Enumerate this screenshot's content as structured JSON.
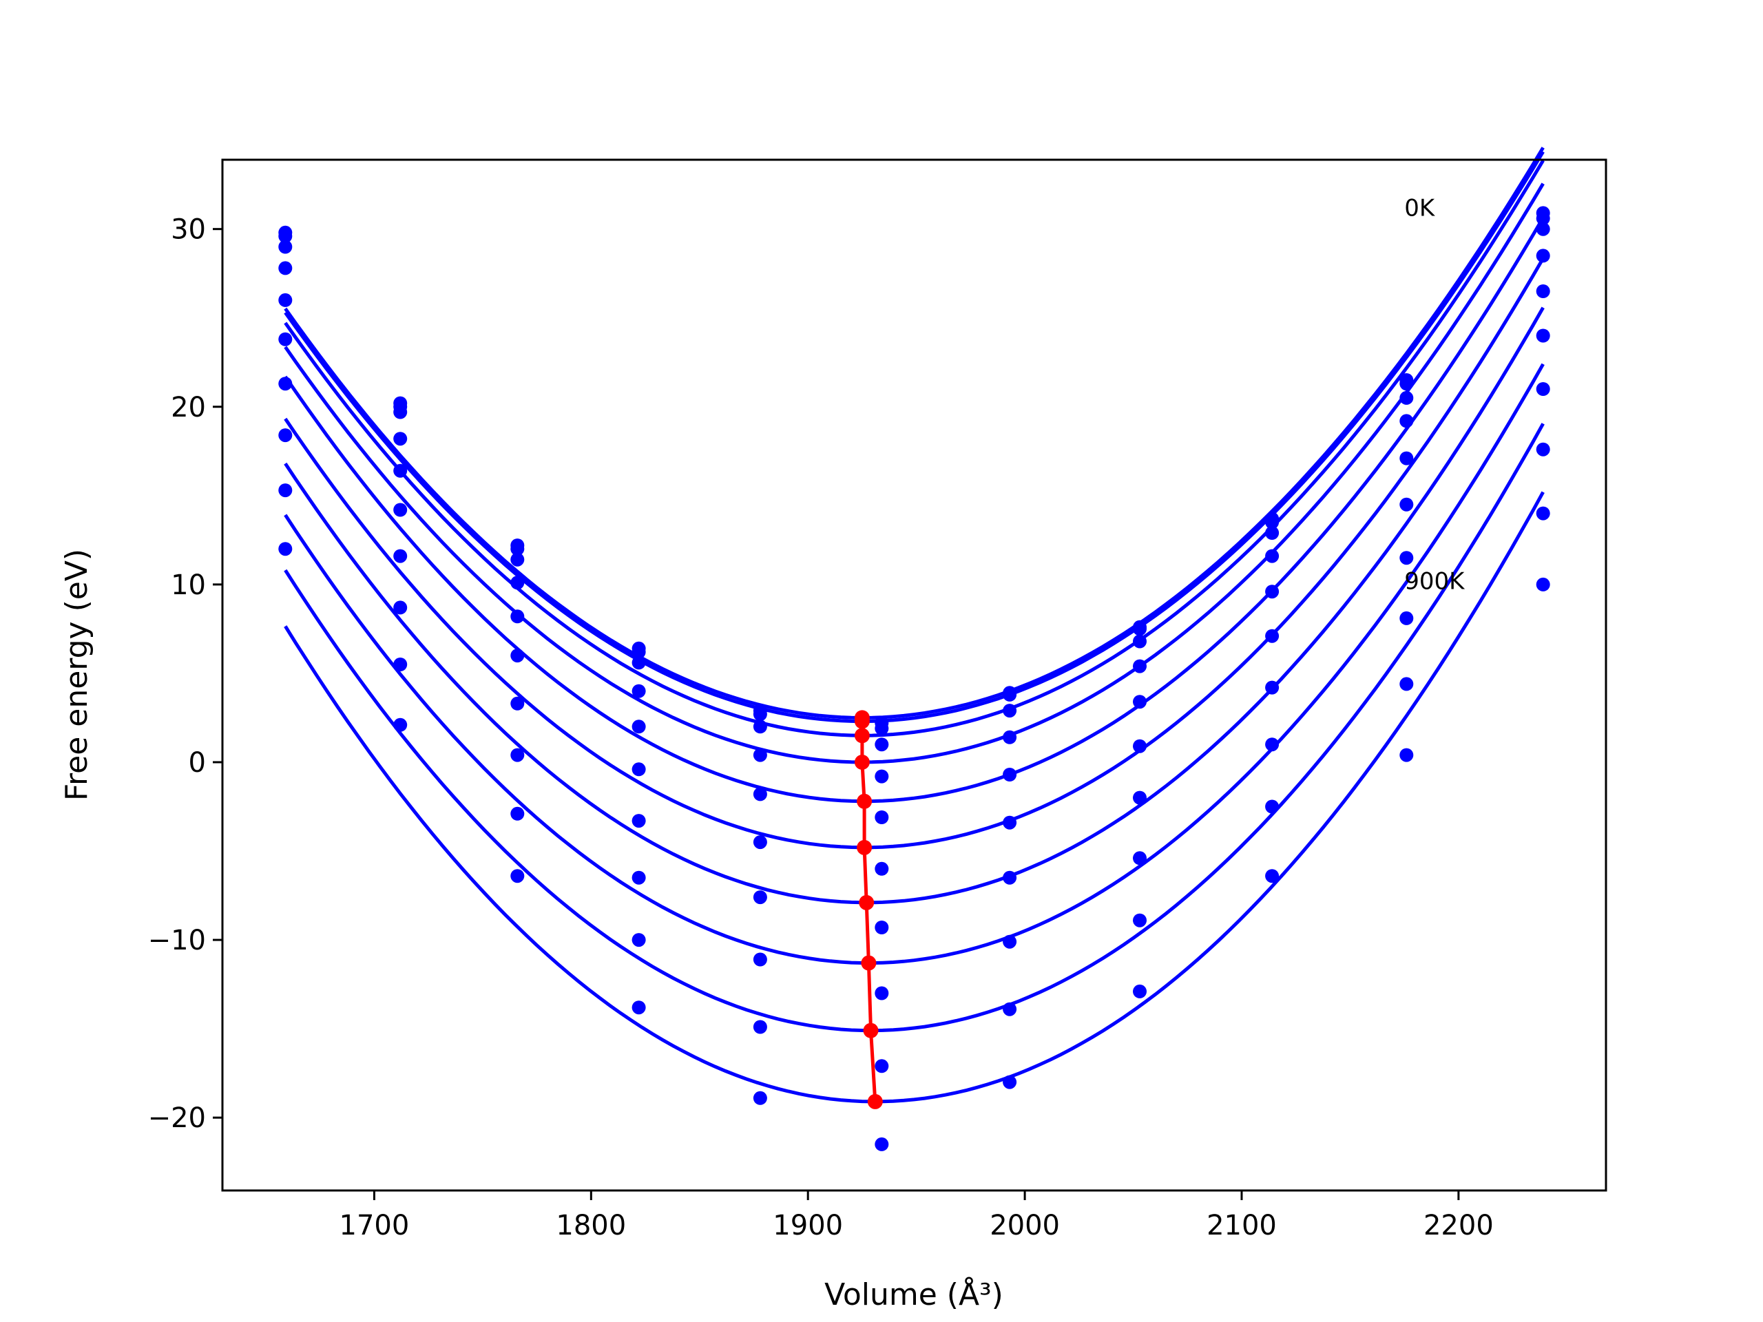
{
  "chart_data": {
    "type": "scatter",
    "xlabel": "Volume (Å³)",
    "ylabel": "Free energy (eV)",
    "xlim": [
      1630,
      2268
    ],
    "ylim": [
      -24.1,
      33.9
    ],
    "x_ticks": [
      1700,
      1800,
      1900,
      2000,
      2100,
      2200
    ],
    "y_ticks": [
      -20,
      -10,
      0,
      10,
      20,
      30
    ],
    "x_tick_labels": [
      "1700",
      "1800",
      "1900",
      "2000",
      "2100",
      "2200"
    ],
    "y_tick_labels": [
      "−20",
      "−10",
      "0",
      "10",
      "20",
      "30"
    ],
    "grid": false,
    "annotations": [
      {
        "text": "0K",
        "x": 2175,
        "y": 31.2
      },
      {
        "text": "900K",
        "x": 2175,
        "y": 10.2
      }
    ],
    "volumes": [
      1659,
      1712,
      1766,
      1822,
      1878,
      1934,
      1993,
      2053,
      2114,
      2176,
      2239
    ],
    "fit_x_range": [
      1659,
      2239
    ],
    "series": [
      {
        "values": [
          29.8,
          20.2,
          12.2,
          6.4,
          2.9,
          2.2,
          3.9,
          7.6,
          13.7,
          21.5,
          30.9
        ],
        "min_v": 1925,
        "min_f": 2.5
      },
      {
        "values": [
          29.6,
          20.0,
          12.0,
          6.2,
          2.7,
          1.9,
          3.8,
          7.5,
          13.5,
          21.3,
          30.6
        ],
        "min_v": 1925,
        "min_f": 2.3
      },
      {
        "values": [
          29.0,
          19.7,
          11.4,
          5.6,
          2.0,
          1.0,
          2.9,
          6.8,
          12.9,
          20.5,
          30.0
        ],
        "min_v": 1925,
        "min_f": 1.5
      },
      {
        "values": [
          27.8,
          18.2,
          10.1,
          4.0,
          0.4,
          -0.8,
          1.4,
          5.4,
          11.6,
          19.2,
          28.5
        ],
        "min_v": 1925,
        "min_f": 0.0
      },
      {
        "values": [
          26.0,
          16.4,
          8.2,
          2.0,
          -1.8,
          -3.1,
          -0.7,
          3.4,
          9.6,
          17.1,
          26.5
        ],
        "min_v": 1926,
        "min_f": -2.2
      },
      {
        "values": [
          23.8,
          14.2,
          6.0,
          -0.4,
          -4.5,
          -6.0,
          -3.4,
          0.9,
          7.1,
          14.5,
          24.0
        ],
        "min_v": 1926,
        "min_f": -4.8
      },
      {
        "values": [
          21.3,
          11.6,
          3.3,
          -3.3,
          -7.6,
          -9.3,
          -6.5,
          -2.0,
          4.2,
          11.5,
          21.0
        ],
        "min_v": 1927,
        "min_f": -7.9
      },
      {
        "values": [
          18.4,
          8.7,
          0.4,
          -6.5,
          -11.1,
          -13.0,
          -10.1,
          -5.4,
          1.0,
          8.1,
          17.6
        ],
        "min_v": 1928,
        "min_f": -11.3
      },
      {
        "values": [
          15.3,
          5.5,
          -2.9,
          -10.0,
          -14.9,
          -17.1,
          -13.9,
          -8.9,
          -2.5,
          4.4,
          14.0
        ],
        "min_v": 1929,
        "min_f": -15.1
      },
      {
        "values": [
          12.0,
          2.1,
          -6.4,
          -13.8,
          -18.9,
          -21.5,
          -18.0,
          -12.9,
          -6.4,
          0.4,
          10.0
        ],
        "min_v": 1931,
        "min_f": -19.1
      }
    ],
    "equilibrium_line": {
      "x": [
        1925,
        1925,
        1925,
        1925,
        1926,
        1926,
        1927,
        1928,
        1929,
        1931
      ],
      "y": [
        2.5,
        2.3,
        1.5,
        0.0,
        -2.2,
        -4.8,
        -7.9,
        -11.3,
        -15.1,
        -19.1
      ]
    },
    "colors": {
      "fit_curves": "#0000ff",
      "data_points": "#0000ff",
      "equilibrium": "#ff0000",
      "axes": "#000000"
    }
  }
}
